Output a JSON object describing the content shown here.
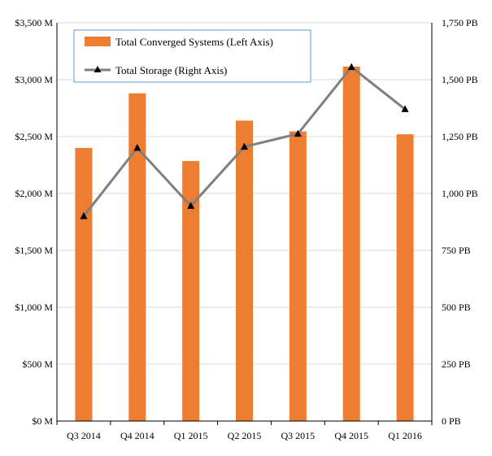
{
  "chart_data": {
    "type": "bar",
    "categories": [
      "Q3 2014",
      "Q4 2014",
      "Q1 2015",
      "Q2 2015",
      "Q3 2015",
      "Q4 2015",
      "Q1 2016"
    ],
    "series": [
      {
        "name": "Total Converged Systems (Left Axis)",
        "type": "bar",
        "axis": "left",
        "unit": "M",
        "color": "#ED7D31",
        "values": [
          2400,
          2880,
          2285,
          2640,
          2545,
          3115,
          2520
        ]
      },
      {
        "name": "Total Storage (Right Axis)",
        "type": "line",
        "axis": "right",
        "unit": "PB",
        "color": "#7F7F7F",
        "marker": "triangle",
        "marker_color": "#000000",
        "values": [
          900,
          1200,
          945,
          1205,
          1262,
          1555,
          1370
        ]
      }
    ],
    "y_left": {
      "ylim": [
        0,
        3500
      ],
      "ticks": [
        0,
        500,
        1000,
        1500,
        2000,
        2500,
        3000,
        3500
      ],
      "tick_labels": [
        "$0 M",
        "$500 M",
        "$1,000 M",
        "$1,500 M",
        "$2,000 M",
        "$2,500 M",
        "$3,000 M",
        "$3,500 M"
      ]
    },
    "y_right": {
      "ylim": [
        0,
        1750
      ],
      "ticks": [
        0,
        250,
        500,
        750,
        1000,
        1250,
        1500,
        1750
      ],
      "tick_labels": [
        "0 PB",
        "250 PB",
        "500 PB",
        "750 PB",
        "1,000 PB",
        "1,250 PB",
        "1,500 PB",
        "1,750 PB"
      ]
    },
    "grid": true,
    "legend": {
      "position": "top-left",
      "entries": [
        "Total Converged Systems (Left Axis)",
        "Total Storage (Right Axis)"
      ]
    },
    "grid_color": "#D9D9D9",
    "axis_color": "#000000",
    "title": "",
    "xlabel": "",
    "ylabel": ""
  }
}
